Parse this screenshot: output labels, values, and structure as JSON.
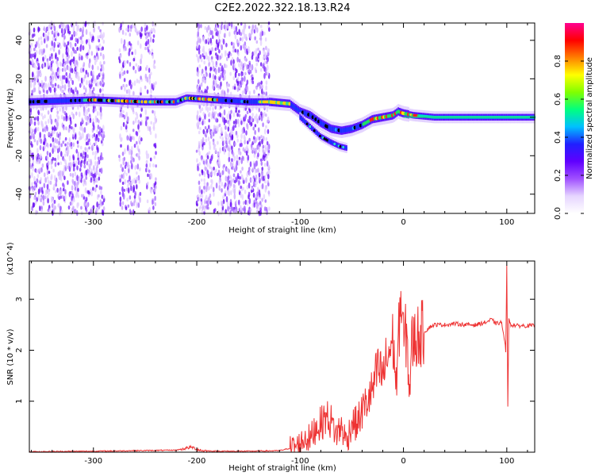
{
  "title": "C2E2.2022.322.18.13.R24",
  "chart_data": [
    {
      "type": "heatmap",
      "panel": "top",
      "xlabel": "Height of straight line (km)",
      "ylabel": "Frequency (Hz)",
      "xlim": [
        -362,
        127
      ],
      "ylim": [
        -50,
        49
      ],
      "xticks": [
        -300,
        -200,
        -100,
        0,
        100
      ],
      "yticks": [
        -40,
        -20,
        0,
        20,
        40
      ],
      "colorbar": {
        "label": "Normalized spectral amplitude",
        "range": [
          0.0,
          1.0
        ],
        "ticks": [
          "0.0",
          "0.2",
          "0.4",
          "0.6",
          "0.8"
        ],
        "tick_values": [
          0.0,
          0.2,
          0.4,
          0.6,
          0.8
        ],
        "colormap": [
          "#ffffff",
          "#e6d5ff",
          "#a050ff",
          "#6000ff",
          "#2020ff",
          "#00c0ff",
          "#00ff80",
          "#80ff00",
          "#ffff00",
          "#ff8000",
          "#ff0000",
          "#ff0090"
        ]
      },
      "main_band": [
        [
          -362,
          8
        ],
        [
          -300,
          9
        ],
        [
          -250,
          8
        ],
        [
          -220,
          8
        ],
        [
          -210,
          10
        ],
        [
          -180,
          9
        ],
        [
          -150,
          8
        ],
        [
          -130,
          8
        ],
        [
          -110,
          7
        ],
        [
          -100,
          3
        ],
        [
          -90,
          1
        ],
        [
          -80,
          -3
        ],
        [
          -70,
          -6
        ],
        [
          -60,
          -7
        ],
        [
          -50,
          -6
        ],
        [
          -40,
          -4
        ],
        [
          -30,
          -1
        ],
        [
          -20,
          0
        ],
        [
          -10,
          1
        ],
        [
          -5,
          3
        ],
        [
          0,
          2
        ],
        [
          10,
          1
        ],
        [
          30,
          0
        ],
        [
          60,
          0
        ],
        [
          100,
          0
        ],
        [
          127,
          0
        ]
      ],
      "lower_band": [
        [
          -100,
          0
        ],
        [
          -90,
          -5
        ],
        [
          -80,
          -10
        ],
        [
          -70,
          -13
        ],
        [
          -62,
          -15
        ],
        [
          -55,
          -16
        ]
      ],
      "noise_columns": [
        [
          -362,
          -290
        ],
        [
          -275,
          -255
        ],
        [
          -250,
          -240
        ],
        [
          -200,
          -130
        ]
      ]
    },
    {
      "type": "line",
      "panel": "bottom",
      "xlabel": "Height of straight line (km)",
      "ylabel": "SNR (10 * v/v)",
      "scale_note": "(x10^4)",
      "xlim": [
        -362,
        127
      ],
      "ylim": [
        0,
        3.75
      ],
      "xticks": [
        -300,
        -200,
        -100,
        0,
        100
      ],
      "yticks": [
        1,
        2,
        3
      ],
      "color": "#ee3333",
      "series": [
        {
          "x": [
            -362,
            -300,
            -220,
            -205,
            -200,
            -195,
            -180,
            -150,
            -120,
            -105,
            -100,
            -95,
            -90,
            -85,
            -80,
            -75,
            -70,
            -65,
            -60,
            -55,
            -50,
            -45,
            -40,
            -35,
            -30,
            -25,
            -20,
            -15,
            -10,
            -7,
            -5,
            -3,
            0,
            3,
            6,
            8,
            10,
            15,
            20,
            25,
            30,
            40,
            50,
            60,
            70,
            80,
            85,
            90,
            95,
            99,
            100,
            101,
            102,
            104,
            110,
            127
          ],
          "y": [
            0.01,
            0.02,
            0.04,
            0.1,
            0.06,
            0.03,
            0.02,
            0.02,
            0.03,
            0.1,
            0.15,
            0.3,
            0.25,
            0.5,
            0.55,
            0.7,
            0.6,
            0.35,
            0.5,
            0.2,
            0.6,
            0.55,
            0.8,
            1.0,
            1.2,
            1.6,
            1.5,
            1.9,
            2.2,
            1.3,
            2.0,
            3.15,
            2.2,
            2.3,
            1.2,
            2.1,
            2.2,
            2.3,
            2.35,
            2.45,
            2.5,
            2.5,
            2.52,
            2.5,
            2.5,
            2.55,
            2.6,
            2.52,
            2.55,
            2.0,
            3.7,
            0.9,
            2.6,
            2.5,
            2.48,
            2.48
          ]
        }
      ]
    }
  ]
}
